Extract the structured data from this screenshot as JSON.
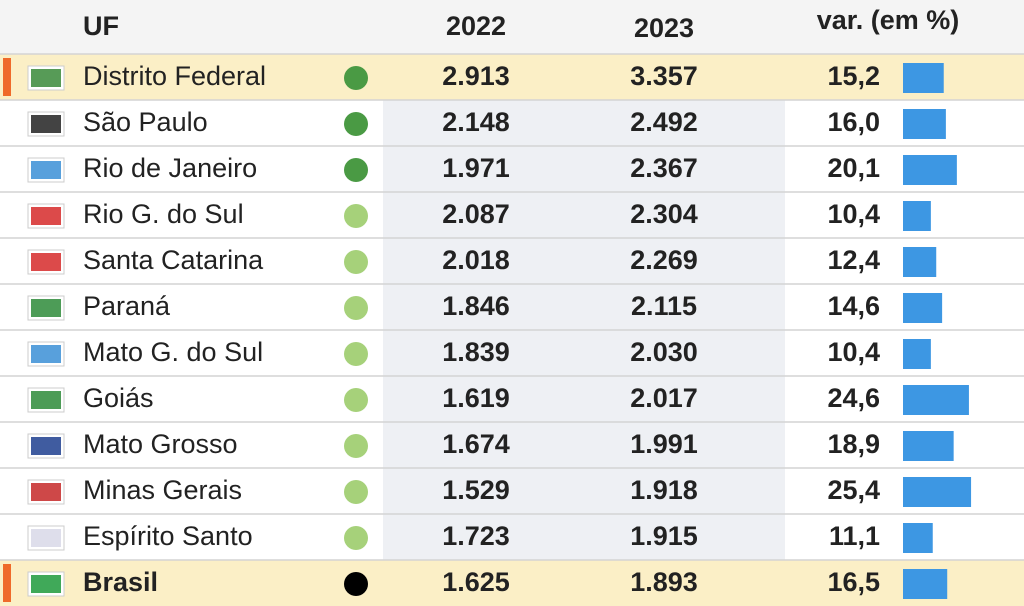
{
  "header": {
    "uf": "UF",
    "y2022": "2022",
    "y2023": "2023",
    "var": "var. (em %)"
  },
  "table": {
    "rows": [
      {
        "name": "Distrito Federal",
        "dot": "#4a9a44",
        "highlight": true,
        "y2022": "2.913",
        "y2023": "3.357",
        "var": {
          "value": 15.2,
          "label": "15,2"
        }
      },
      {
        "name": "São Paulo",
        "dot": "#4a9a44",
        "highlight": false,
        "y2022": "2.148",
        "y2023": "2.492",
        "var": {
          "value": 16.0,
          "label": "16,0"
        }
      },
      {
        "name": "Rio de Janeiro",
        "dot": "#4a9a44",
        "highlight": false,
        "y2022": "1.971",
        "y2023": "2.367",
        "var": {
          "value": 20.1,
          "label": "20,1"
        }
      },
      {
        "name": "Rio G. do Sul",
        "dot": "#a6d17a",
        "highlight": false,
        "y2022": "2.087",
        "y2023": "2.304",
        "var": {
          "value": 10.4,
          "label": "10,4"
        }
      },
      {
        "name": "Santa Catarina",
        "dot": "#a6d17a",
        "highlight": false,
        "y2022": "2.018",
        "y2023": "2.269",
        "var": {
          "value": 12.4,
          "label": "12,4"
        }
      },
      {
        "name": "Paraná",
        "dot": "#a6d17a",
        "highlight": false,
        "y2022": "1.846",
        "y2023": "2.115",
        "var": {
          "value": 14.6,
          "label": "14,6"
        }
      },
      {
        "name": "Mato G. do Sul",
        "dot": "#a6d17a",
        "highlight": false,
        "y2022": "1.839",
        "y2023": "2.030",
        "var": {
          "value": 10.4,
          "label": "10,4"
        }
      },
      {
        "name": "Goiás",
        "dot": "#a6d17a",
        "highlight": false,
        "y2022": "1.619",
        "y2023": "2.017",
        "var": {
          "value": 24.6,
          "label": "24,6"
        }
      },
      {
        "name": "Mato Grosso",
        "dot": "#a6d17a",
        "highlight": false,
        "y2022": "1.674",
        "y2023": "1.991",
        "var": {
          "value": 18.9,
          "label": "18,9"
        }
      },
      {
        "name": "Minas Gerais",
        "dot": "#a6d17a",
        "highlight": false,
        "y2022": "1.529",
        "y2023": "1.918",
        "var": {
          "value": 25.4,
          "label": "25,4"
        }
      },
      {
        "name": "Espírito Santo",
        "dot": "#a6d17a",
        "highlight": false,
        "y2022": "1.723",
        "y2023": "1.915",
        "var": {
          "value": 11.1,
          "label": "11,1"
        }
      },
      {
        "name": "Brasil",
        "dot": "#000000",
        "highlight": true,
        "y2022": "1.625",
        "y2023": "1.893",
        "var": {
          "value": 16.5,
          "label": "16,5"
        }
      }
    ],
    "bar_color": "#3d97e3"
  }
}
